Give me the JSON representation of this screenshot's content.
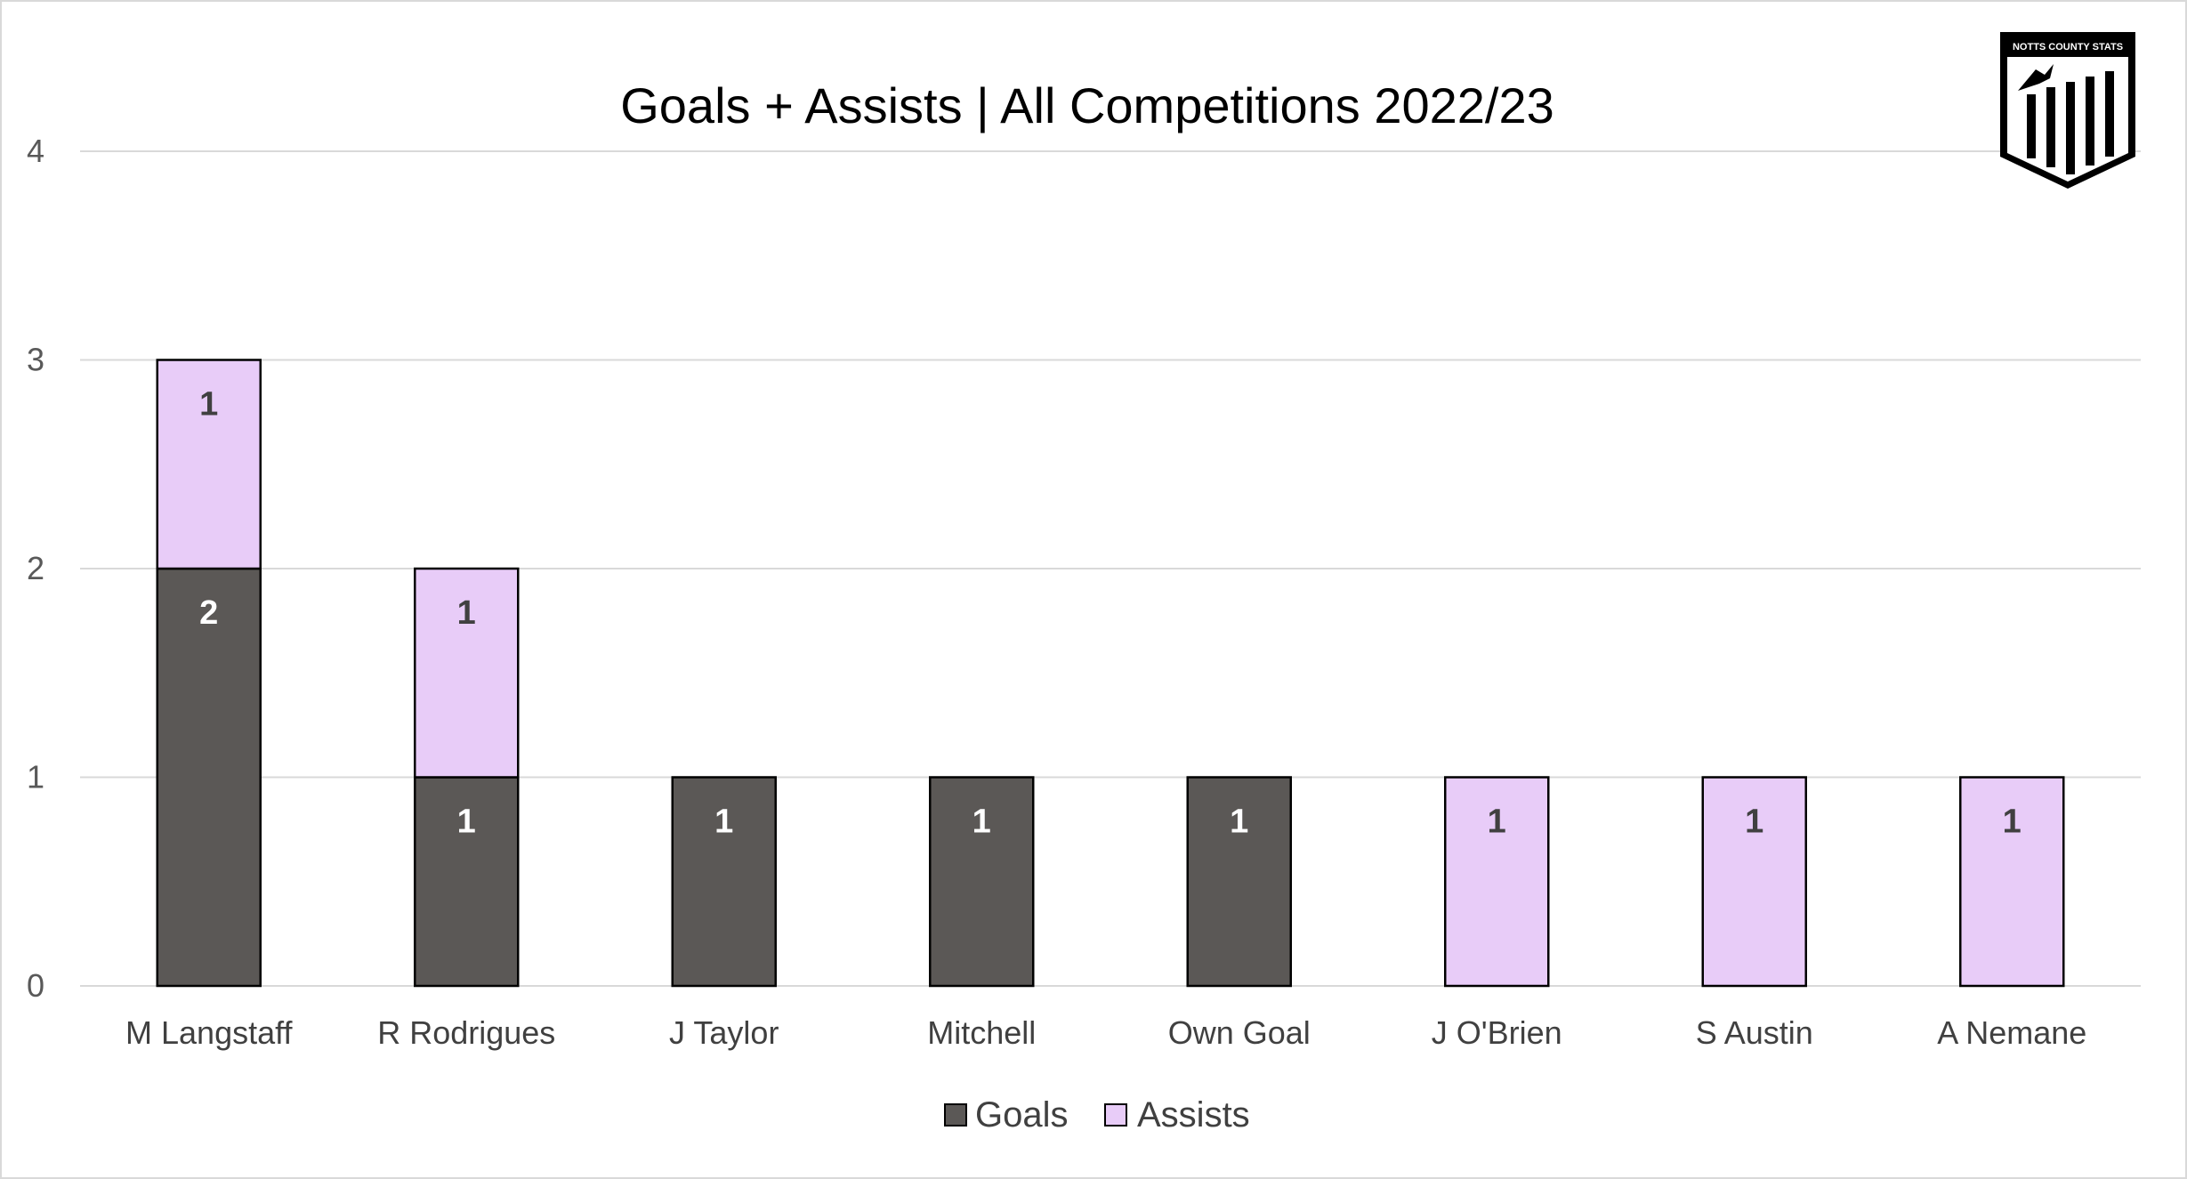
{
  "logo": {
    "text": "NOTTS COUNTY STATS"
  },
  "legend": {
    "goals_label": "Goals",
    "assists_label": "Assists"
  },
  "colors": {
    "goals": "#5b5856",
    "assists": "#e8ccf8",
    "gridline": "#d9d9d9",
    "bar_outline": "#000000",
    "label_on_goals": "#ffffff",
    "label_on_assists": "#404040"
  },
  "chart_data": {
    "type": "bar",
    "stacked": true,
    "title": "Goals + Assists | All Competitions 2022/23",
    "xlabel": "",
    "ylabel": "",
    "ylim": [
      0,
      4
    ],
    "yticks": [
      0,
      1,
      2,
      3,
      4
    ],
    "grid": true,
    "legend_position": "bottom",
    "categories": [
      "M Langstaff",
      "R Rodrigues",
      "J Taylor",
      "Mitchell",
      "Own Goal",
      "J O'Brien",
      "S Austin",
      "A Nemane"
    ],
    "series": [
      {
        "name": "Goals",
        "values": [
          2,
          1,
          1,
          1,
          1,
          0,
          0,
          0
        ]
      },
      {
        "name": "Assists",
        "values": [
          1,
          1,
          0,
          0,
          0,
          1,
          1,
          1
        ]
      }
    ]
  }
}
